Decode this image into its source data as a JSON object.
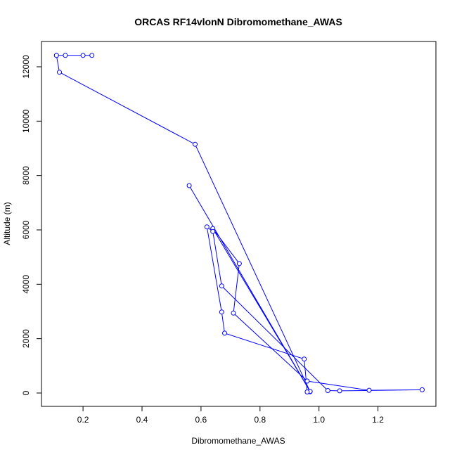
{
  "chart_data": {
    "type": "line",
    "title": "ORCAS RF14vlonN Dibromomethane_AWAS",
    "xlabel": "Dibromomethane_AWAS",
    "ylabel": "Altitude (m)",
    "xlim": [
      0.1,
      1.35
    ],
    "ylim": [
      0,
      12800
    ],
    "x_ticks": [
      0.2,
      0.4,
      0.6,
      0.8,
      1.0,
      1.2
    ],
    "x_tick_labels": [
      "0.2",
      "0.4",
      "0.6",
      "0.8",
      "1.0",
      "1.2"
    ],
    "y_ticks": [
      0,
      2000,
      4000,
      6000,
      8000,
      10000,
      12000
    ],
    "y_tick_labels": [
      "0",
      "2000",
      "4000",
      "6000",
      "8000",
      "10000",
      "12000"
    ],
    "grid": false,
    "series": [
      {
        "color": "#0000ff",
        "marker": "open-circle",
        "x": [
          0.11,
          0.14,
          0.2,
          0.23,
          0.11,
          0.12,
          0.58,
          0.97,
          0.56,
          0.97,
          0.64,
          0.73,
          0.71,
          0.96,
          1.17,
          1.35,
          1.07,
          1.03,
          0.67,
          0.64,
          0.62,
          0.67,
          0.68,
          0.95,
          0.96
        ],
        "y": [
          12420,
          12420,
          12420,
          12420,
          12420,
          11800,
          9150,
          50,
          7630,
          60,
          6050,
          4760,
          2940,
          440,
          100,
          120,
          80,
          90,
          3940,
          5940,
          6110,
          2980,
          2200,
          1250,
          40
        ]
      }
    ]
  }
}
